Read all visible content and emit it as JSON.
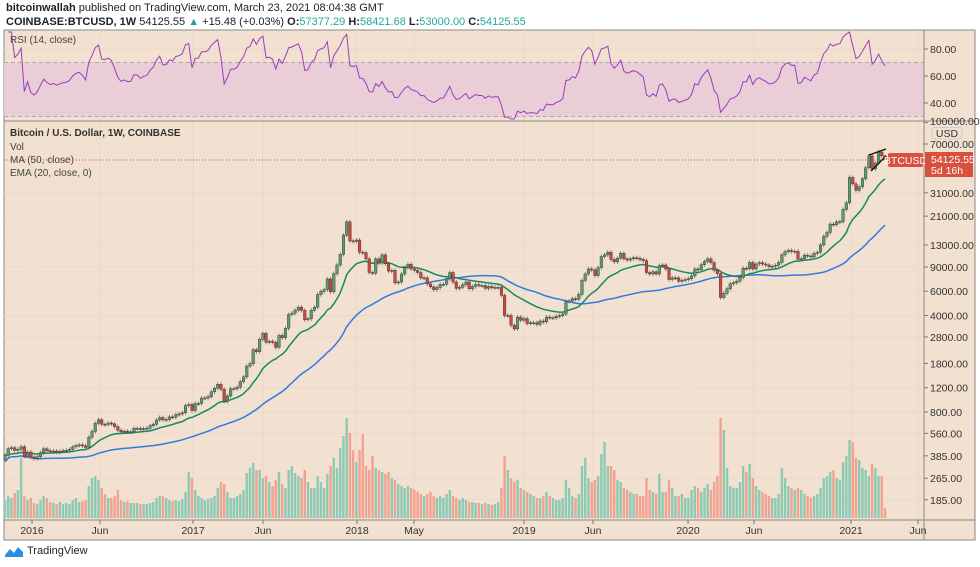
{
  "header": {
    "author": "bitcoinwallah",
    "published_text": "published on TradingView.com, March 23, 2021 08:04:38 GMT",
    "symbol": "COINBASE:BTCUSD, 1W",
    "last": "54125.55",
    "change": "+15.48 (+0.03%)",
    "o_label": "O:",
    "o": "57377.29",
    "h_label": "H:",
    "h": "58421.68",
    "l_label": "L:",
    "l": "53000.00",
    "c_label": "C:",
    "c": "54125.55"
  },
  "legend": {
    "rsi": "RSI (14, close)",
    "title": "Bitcoin / U.S. Dollar, 1W, COINBASE",
    "vol": "Vol",
    "ma": "MA (50, close)",
    "ema": "EMA (20, close, 0)"
  },
  "price_tag": {
    "symbol": "BTCUSD",
    "price": "54125.55",
    "countdown": "5d 16h"
  },
  "footer": {
    "brand": "TradingView"
  },
  "colors": {
    "background": "#f2e0d0",
    "candle_up": "#5a9e6e",
    "candle_down": "#d0473a",
    "vol_up": "#8ccab4",
    "vol_down": "#f1a290",
    "ema": "#138a66",
    "ma": "#2f7be0",
    "rsi": "#9b3cc0",
    "rsi_band": "#e7c9d8",
    "tag": "#d9503f"
  },
  "chart_data": [
    {
      "type": "line",
      "name": "RSI (14, close)",
      "yticks": [
        "80.00",
        "60.00",
        "40.00"
      ],
      "ytick_values": [
        80,
        60,
        40
      ],
      "band": [
        30,
        70
      ],
      "ylim": [
        10,
        95
      ]
    },
    {
      "type": "candlestick",
      "title": "Bitcoin / U.S. Dollar, 1W, COINBASE",
      "yscale": "log",
      "ylabel": "USD",
      "ylim": [
        150,
        100000
      ],
      "grid": true,
      "yticks": [
        "100000.00",
        "70000.00",
        "31000.00",
        "21000.00",
        "13000.00",
        "9000.00",
        "6000.00",
        "4000.00",
        "2800.00",
        "1800.00",
        "1200.00",
        "800.00",
        "560.00",
        "385.00",
        "265.00",
        "185.00"
      ],
      "ytick_values": [
        100000,
        70000,
        31000,
        21000,
        13000,
        9000,
        6000,
        4000,
        2800,
        1800,
        1200,
        800,
        560,
        385,
        265,
        185
      ],
      "xticks": [
        "2016",
        "Jun",
        "2017",
        "Jun",
        "2018",
        "May",
        "2019",
        "Jun",
        "2020",
        "Jun",
        "2021",
        "Jun"
      ],
      "first_open": 363,
      "last_candle": {
        "open": 57377.29,
        "high": 58421.68,
        "low": 53000.0,
        "close": 54125.55
      },
      "close": [
        388,
        434,
        441,
        422,
        430,
        448,
        383,
        410,
        378,
        369,
        379,
        405,
        433,
        420,
        411,
        417,
        410,
        416,
        420,
        422,
        429,
        447,
        457,
        462,
        455,
        443,
        526,
        578,
        663,
        703,
        652,
        650,
        665,
        656,
        627,
        591,
        573,
        581,
        574,
        575,
        609,
        609,
        597,
        607,
        611,
        637,
        653,
        700,
        729,
        703,
        705,
        737,
        734,
        767,
        774,
        790,
        891,
        907,
        820,
        921,
        922,
        1009,
        1011,
        1033,
        1120,
        1190,
        1270,
        1170,
        958,
        1045,
        1180,
        1180,
        1210,
        1330,
        1437,
        1720,
        1790,
        2260,
        2190,
        2690,
        2970,
        2560,
        2600,
        2560,
        2350,
        2870,
        2760,
        3230,
        4070,
        4160,
        4380,
        4600,
        4360,
        3730,
        3790,
        4370,
        4600,
        5680,
        5990,
        6160,
        7370,
        5950,
        8040,
        9300,
        11100,
        15300,
        19100,
        13900,
        13800,
        14100,
        11500,
        11400,
        10300,
        8200,
        8100,
        10300,
        9600,
        11000,
        9500,
        8400,
        8500,
        6900,
        7000,
        8000,
        8900,
        9400,
        8700,
        8500,
        8200,
        7500,
        7500,
        6780,
        6450,
        6170,
        6380,
        6720,
        6740,
        7400,
        8200,
        7000,
        6300,
        6400,
        6700,
        7000,
        6250,
        6500,
        6700,
        6600,
        6600,
        6300,
        6500,
        6350,
        6400,
        6400,
        5600,
        4000,
        4000,
        3400,
        3200,
        3900,
        3700,
        3800,
        3500,
        3550,
        3550,
        3450,
        3650,
        3600,
        3900,
        3850,
        3850,
        3950,
        4000,
        4100,
        5050,
        5100,
        5300,
        5250,
        5700,
        7200,
        8000,
        8700,
        8550,
        7800,
        8900,
        10700,
        11000,
        11500,
        10200,
        9800,
        10400,
        11300,
        10300,
        10100,
        10300,
        10500,
        10400,
        10200,
        10000,
        8200,
        8000,
        8300,
        8000,
        9200,
        9300,
        8700,
        7300,
        7500,
        7500,
        7100,
        7200,
        7300,
        7400,
        7750,
        8700,
        8600,
        9350,
        9850,
        10300,
        9650,
        8500,
        8050,
        5400,
        5800,
        6250,
        6800,
        6900,
        7100,
        7550,
        8800,
        8750,
        9700,
        8700,
        9450,
        9650,
        9450,
        9300,
        9050,
        9100,
        9250,
        9700,
        11000,
        11600,
        11850,
        11650,
        11700,
        10250,
        10300,
        10950,
        10800,
        10650,
        11300,
        11500,
        13000,
        15000,
        16000,
        18400,
        18200,
        19100,
        19200,
        23500,
        26300,
        40100,
        36000,
        32300,
        34300,
        39200,
        47100,
        57400,
        46200,
        51000,
        61200,
        57377.29,
        54125.55
      ],
      "volume_relative": [
        18,
        22,
        20,
        25,
        28,
        60,
        22,
        18,
        20,
        15,
        14,
        18,
        22,
        20,
        16,
        15,
        14,
        16,
        14,
        15,
        14,
        18,
        20,
        16,
        17,
        18,
        32,
        40,
        42,
        38,
        30,
        24,
        20,
        20,
        22,
        28,
        18,
        16,
        17,
        15,
        15,
        15,
        14,
        14,
        14,
        15,
        16,
        20,
        22,
        22,
        20,
        18,
        17,
        18,
        17,
        19,
        26,
        46,
        40,
        28,
        22,
        20,
        18,
        19,
        20,
        22,
        30,
        36,
        34,
        26,
        20,
        20,
        22,
        24,
        28,
        45,
        50,
        55,
        48,
        48,
        40,
        42,
        36,
        32,
        38,
        46,
        34,
        30,
        48,
        52,
        45,
        42,
        40,
        48,
        36,
        30,
        30,
        42,
        36,
        30,
        44,
        52,
        60,
        50,
        70,
        82,
        100,
        85,
        68,
        56,
        68,
        84,
        52,
        48,
        62,
        50,
        48,
        46,
        44,
        46,
        40,
        38,
        34,
        32,
        30,
        32,
        30,
        28,
        26,
        24,
        22,
        24,
        26,
        22,
        20,
        22,
        20,
        24,
        28,
        22,
        20,
        18,
        20,
        18,
        16,
        16,
        15,
        15,
        14,
        15,
        14,
        13,
        14,
        16,
        30,
        62,
        48,
        40,
        36,
        38,
        30,
        28,
        26,
        24,
        22,
        20,
        20,
        22,
        26,
        22,
        20,
        18,
        18,
        20,
        38,
        30,
        22,
        20,
        24,
        52,
        60,
        40,
        36,
        38,
        42,
        64,
        76,
        52,
        52,
        48,
        38,
        36,
        30,
        28,
        26,
        24,
        24,
        22,
        22,
        40,
        28,
        26,
        24,
        44,
        26,
        26,
        38,
        30,
        22,
        22,
        24,
        20,
        20,
        28,
        32,
        30,
        26,
        30,
        34,
        28,
        36,
        42,
        100,
        88,
        50,
        32,
        30,
        30,
        36,
        52,
        46,
        54,
        40,
        32,
        28,
        26,
        24,
        22,
        20,
        20,
        24,
        50,
        40,
        32,
        30,
        28,
        30,
        28,
        24,
        22,
        20,
        22,
        24,
        30,
        40,
        42,
        46,
        48,
        40,
        38,
        56,
        62,
        78,
        76,
        60,
        58,
        50,
        48,
        42,
        54,
        50,
        42,
        42,
        10
      ],
      "series": [
        {
          "name": "MA (50, close)"
        },
        {
          "name": "EMA (20, close, 0)"
        },
        {
          "name": "Vol"
        }
      ]
    }
  ]
}
